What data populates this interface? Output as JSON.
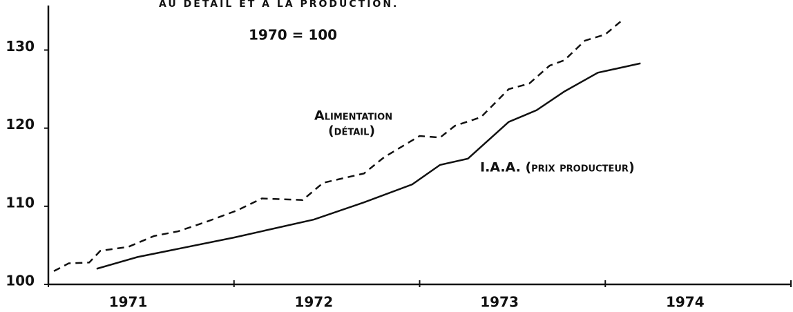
{
  "chart_data": {
    "type": "line",
    "title": "AU DÉTAIL ET À LA PRODUCTION.",
    "subtitle": "1970 = 100",
    "categories": [
      "1971",
      "1972",
      "1973",
      "1974"
    ],
    "xlim": [
      1971,
      1975
    ],
    "xticks": [
      1971,
      1972,
      1973,
      1974,
      1975
    ],
    "ylim": [
      100,
      135.7
    ],
    "yticks": [
      100,
      110,
      120,
      130
    ],
    "series": [
      {
        "label": [
          "Alimentation",
          "(détail)"
        ],
        "color": "#111111",
        "dashed": true,
        "x": [
          1971.03,
          1971.11,
          1971.22,
          1971.28,
          1971.43,
          1971.57,
          1971.7,
          1971.85,
          1972.02,
          1972.15,
          1972.37,
          1972.48,
          1972.7,
          1972.81,
          1973.0,
          1973.11,
          1973.19,
          1973.33,
          1973.48,
          1973.59,
          1973.7,
          1973.78,
          1973.89,
          1974.0,
          1974.09
        ],
        "values": [
          101.7,
          102.7,
          102.8,
          104.3,
          104.8,
          106.2,
          106.8,
          108.0,
          109.5,
          111.0,
          110.8,
          113.0,
          114.2,
          116.3,
          119.0,
          118.8,
          120.3,
          121.4,
          125.0,
          125.7,
          128.0,
          128.7,
          131.2,
          132.0,
          133.8
        ]
      },
      {
        "label": [
          "I.A.A. (prix producteur)"
        ],
        "color": "#111111",
        "dashed": false,
        "x": [
          1971.26,
          1971.48,
          1972.0,
          1972.43,
          1972.7,
          1972.96,
          1973.11,
          1973.26,
          1973.48,
          1973.63,
          1973.78,
          1973.96,
          1974.19
        ],
        "values": [
          102.0,
          103.5,
          106.0,
          108.3,
          110.5,
          112.8,
          115.3,
          116.1,
          120.8,
          122.3,
          124.7,
          127.1,
          128.3
        ]
      }
    ]
  }
}
